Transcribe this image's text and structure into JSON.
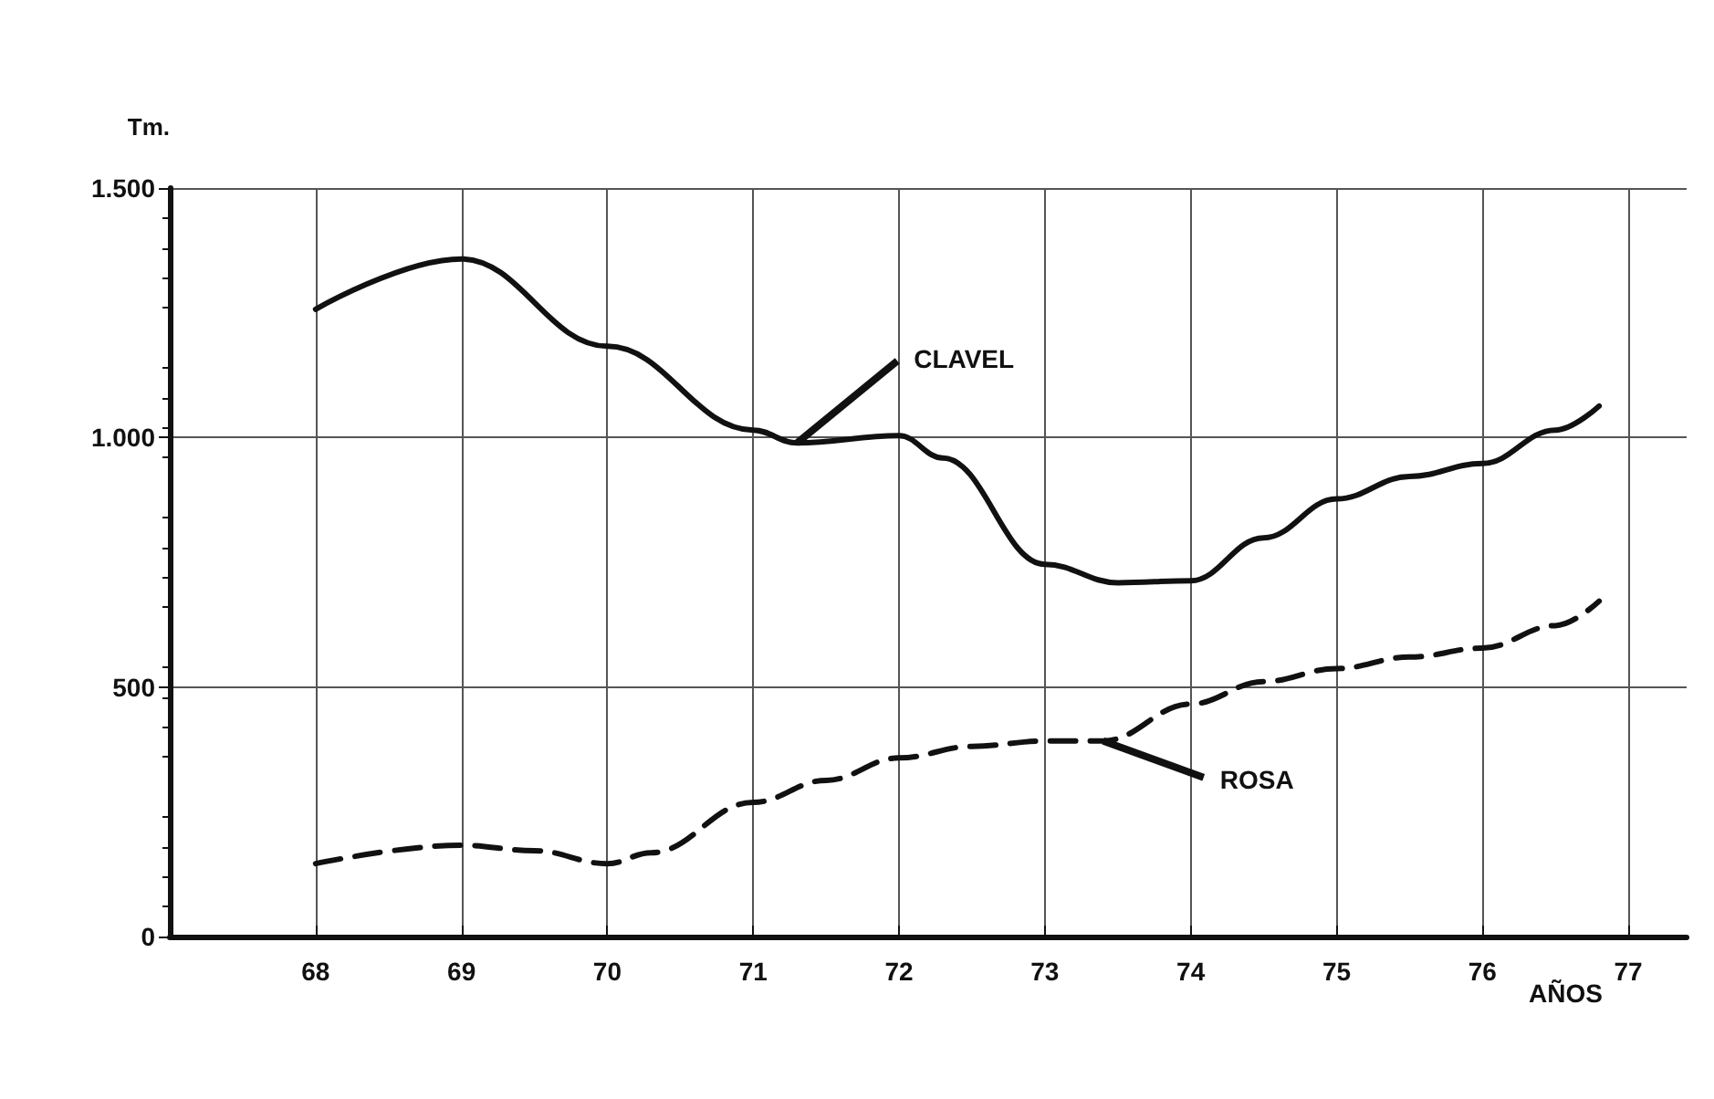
{
  "chart_data": {
    "type": "line",
    "ylabel": "Tm.",
    "xlabel": "AÑOS",
    "xlim": [
      67,
      77.4
    ],
    "xticks": [
      68,
      69,
      70,
      71,
      72,
      73,
      74,
      75,
      76,
      77
    ],
    "ylim": [
      0,
      1500
    ],
    "yticks": [
      0,
      500,
      {
        "value": 1000,
        "label": "1.000"
      },
      {
        "value": 1500,
        "label": "1.500"
      }
    ],
    "grid": true,
    "series": [
      {
        "color": "#111111",
        "line_style": "solid",
        "x": [
          68,
          69,
          70,
          71,
          71.3,
          72,
          72.3,
          73,
          73.5,
          74,
          74.5,
          75,
          75.5,
          76,
          76.5,
          76.8
        ],
        "values": [
          1257,
          1358,
          1183,
          1015,
          989,
          1004,
          959,
          746,
          709,
          713,
          799,
          877,
          922,
          948,
          1015,
          1063
        ]
      },
      {
        "color": "#111111",
        "line_style": "dashed",
        "x": [
          68,
          69,
          69.5,
          70,
          70.3,
          71,
          71.5,
          72,
          72.5,
          73,
          73.4,
          74,
          74.5,
          75,
          75.5,
          76,
          76.5,
          76.8
        ],
        "values": [
          146,
          183,
          172,
          146,
          168,
          269,
          313,
          358,
          381,
          392,
          392,
          466,
          511,
          537,
          560,
          578,
          623,
          672
        ]
      }
    ],
    "annotations": [
      {
        "text": "CLAVEL",
        "x": 71.3,
        "y": 989
      },
      {
        "text": "ROSA",
        "x": 73.4,
        "y": 392
      }
    ]
  }
}
